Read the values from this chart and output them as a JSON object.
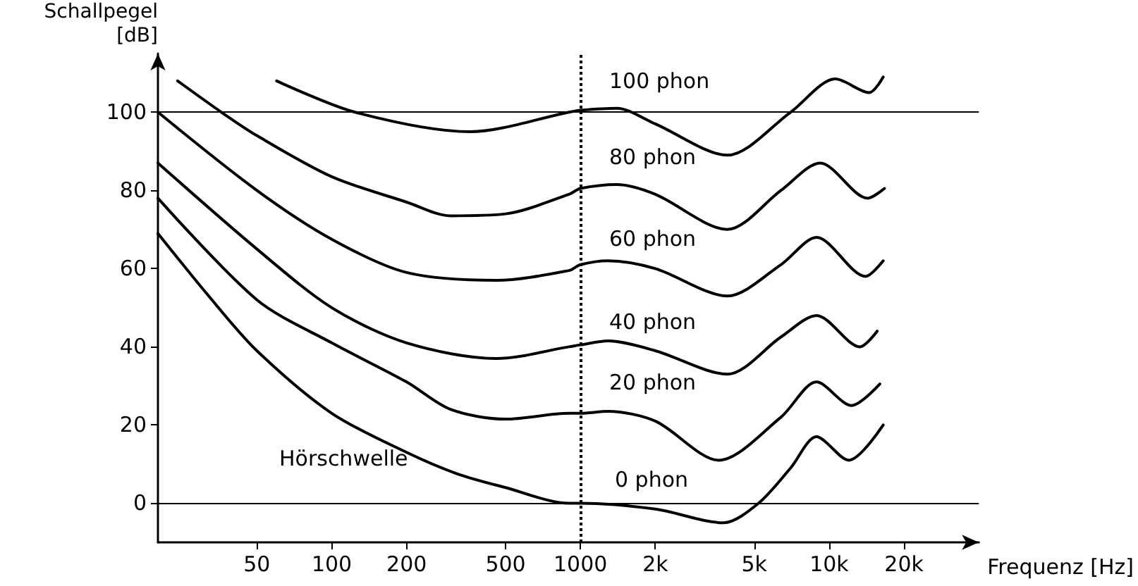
{
  "chart_data": {
    "type": "line",
    "xlabel": "Frequenz [Hz]",
    "ylabel": "Schallpegel\n[dB]",
    "log": "x",
    "grid": false,
    "marker": "none",
    "line_style": "solid",
    "xlim": [
      20,
      40000
    ],
    "ylim": [
      -10,
      115
    ],
    "xticks": [
      50,
      100,
      200,
      500,
      1000,
      {
        "value": 2000,
        "label": "2k"
      },
      {
        "value": 5000,
        "label": "5k"
      },
      {
        "value": 10000,
        "label": "10k"
      },
      {
        "value": 20000,
        "label": "20k"
      }
    ],
    "yticks": [
      0,
      20,
      40,
      60,
      80,
      100
    ],
    "series": [
      {
        "color": "#000000",
        "x": [
          20,
          32,
          50,
          100,
          200,
          320,
          500,
          900,
          1000,
          2000,
          3760,
          5200,
          7000,
          8900,
          12000,
          16500
        ],
        "values": [
          69,
          53,
          39,
          23,
          13,
          7.5,
          4,
          0,
          0,
          -1.5,
          -5,
          0,
          9,
          17,
          11,
          20
        ]
      },
      {
        "color": "#000000",
        "x": [
          20,
          50,
          100,
          200,
          300,
          500,
          900,
          1000,
          1290,
          2000,
          3600,
          6400,
          8900,
          12300,
          16000
        ],
        "values": [
          78,
          52,
          41,
          31,
          24,
          21.5,
          23,
          23,
          23.5,
          21,
          11,
          22,
          31,
          25,
          30.5
        ]
      },
      {
        "color": "#000000",
        "x": [
          20,
          50,
          100,
          200,
          460,
          900,
          1000,
          1290,
          2000,
          3900,
          6400,
          8900,
          13300,
          15600
        ],
        "values": [
          87,
          65,
          50,
          41,
          37,
          40,
          40.5,
          41.5,
          39,
          33,
          42.5,
          48,
          40,
          44
        ]
      },
      {
        "color": "#000000",
        "x": [
          20,
          50,
          100,
          200,
          460,
          900,
          1000,
          1290,
          2000,
          3900,
          6400,
          8900,
          14000,
          16500
        ],
        "values": [
          100,
          80,
          67.5,
          59,
          57,
          59.5,
          61,
          62,
          60,
          53,
          61,
          68,
          58,
          62
        ]
      },
      {
        "color": "#000000",
        "x": [
          24,
          36,
          50,
          100,
          200,
          300,
          500,
          900,
          1000,
          1400,
          2000,
          3900,
          6400,
          9200,
          14300,
          16700
        ],
        "values": [
          108,
          100,
          94,
          83.5,
          77,
          73.5,
          74,
          79,
          80.5,
          81.5,
          79,
          70,
          80,
          87,
          78,
          80.5
        ]
      },
      {
        "color": "#000000",
        "x": [
          60,
          124,
          360,
          900,
          1000,
          1400,
          2000,
          3900,
          7000,
          10600,
          14500,
          16500
        ],
        "values": [
          108,
          100,
          95,
          100,
          100.5,
          101,
          97,
          89,
          100,
          108.5,
          105,
          109
        ]
      }
    ],
    "ref_lines": [
      {
        "axis": "y",
        "value": 0,
        "color": "#000000",
        "line_style": "solid"
      },
      {
        "axis": "y",
        "value": 100,
        "color": "#000000",
        "line_style": "solid"
      },
      {
        "axis": "x",
        "value": 1000,
        "color": "#000000",
        "line_style": "dotted"
      }
    ],
    "annotations": [
      "100 phon",
      "80 phon",
      "60 phon",
      "40 phon",
      "20 phon",
      "0 phon",
      "Hörschwelle"
    ]
  }
}
